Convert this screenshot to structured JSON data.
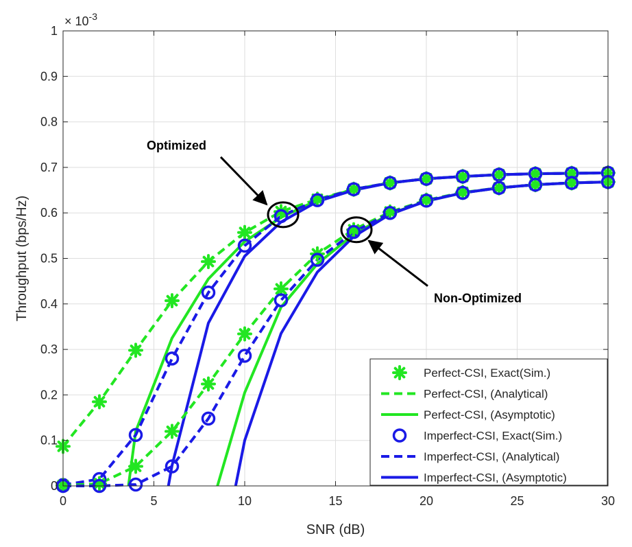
{
  "chart_data": {
    "type": "line",
    "xlabel": "SNR (dB)",
    "ylabel": "Throughput (bps/Hz)",
    "y_scale_label": "× 10",
    "y_scale_exp": "-3",
    "xlim": [
      0,
      30
    ],
    "ylim": [
      0,
      1
    ],
    "xticks": [
      0,
      5,
      10,
      15,
      20,
      25,
      30
    ],
    "yticks": [
      0,
      0.1,
      0.2,
      0.3,
      0.4,
      0.5,
      0.6,
      0.7,
      0.8,
      0.9,
      1
    ],
    "grid": true,
    "legend_position": "bottom-right",
    "colors": {
      "perfect": "#22e622",
      "imperfect": "#1a1ae6"
    },
    "annotations": [
      {
        "text": "Optimized",
        "target": [
          12,
          0.593
        ]
      },
      {
        "text": "Non-Optimized",
        "target": [
          16,
          0.56
        ]
      }
    ],
    "legend": [
      "Perfect-CSI, Exact(Sim.)",
      "Perfect-CSI, (Analytical)",
      "Perfect-CSI, (Asymptotic)",
      "Imperfect-CSI, Exact(Sim.)",
      "Imperfect-CSI, (Analytical)",
      "Imperfect-CSI, (Asymptotic)"
    ],
    "series": [
      {
        "name": "Perfect-CSI, Exact(Sim.)",
        "group": "optimized",
        "style": "marker-star",
        "color": "#22e622",
        "x": [
          0,
          2,
          4,
          6,
          8,
          10,
          12,
          14,
          16,
          18,
          20,
          22,
          24,
          26,
          28,
          30
        ],
        "y": [
          0.087,
          0.185,
          0.298,
          0.407,
          0.493,
          0.557,
          0.603,
          0.63,
          0.652,
          0.666,
          0.675,
          0.68,
          0.684,
          0.686,
          0.687,
          0.688
        ]
      },
      {
        "name": "Perfect-CSI, (Analytical)",
        "group": "optimized",
        "style": "dashed",
        "color": "#22e622",
        "x": [
          0,
          2,
          4,
          6,
          8,
          10,
          12,
          14,
          16,
          18,
          20,
          22,
          24,
          26,
          28,
          30
        ],
        "y": [
          0.087,
          0.185,
          0.298,
          0.407,
          0.493,
          0.557,
          0.603,
          0.63,
          0.652,
          0.666,
          0.675,
          0.68,
          0.684,
          0.686,
          0.687,
          0.688
        ]
      },
      {
        "name": "Perfect-CSI, (Asymptotic)",
        "group": "optimized",
        "style": "solid",
        "color": "#22e622",
        "x": [
          3.6,
          4,
          6,
          8,
          10,
          12,
          14,
          16,
          18,
          20,
          22,
          24,
          26,
          28,
          30
        ],
        "y": [
          0,
          0.12,
          0.325,
          0.455,
          0.537,
          0.59,
          0.628,
          0.652,
          0.666,
          0.675,
          0.68,
          0.684,
          0.686,
          0.687,
          0.688
        ]
      },
      {
        "name": "Imperfect-CSI, Exact(Sim.)",
        "group": "optimized",
        "style": "marker-circle",
        "color": "#1a1ae6",
        "x": [
          0,
          2,
          4,
          6,
          8,
          10,
          12,
          14,
          16,
          18,
          20,
          22,
          24,
          26,
          28,
          30
        ],
        "y": [
          0.002,
          0.015,
          0.112,
          0.28,
          0.425,
          0.528,
          0.593,
          0.628,
          0.652,
          0.666,
          0.675,
          0.68,
          0.684,
          0.686,
          0.687,
          0.688
        ]
      },
      {
        "name": "Imperfect-CSI, (Analytical)",
        "group": "optimized",
        "style": "dashed",
        "color": "#1a1ae6",
        "x": [
          0,
          2,
          4,
          6,
          8,
          10,
          12,
          14,
          16,
          18,
          20,
          22,
          24,
          26,
          28,
          30
        ],
        "y": [
          0.002,
          0.015,
          0.112,
          0.28,
          0.425,
          0.528,
          0.593,
          0.628,
          0.652,
          0.666,
          0.675,
          0.68,
          0.684,
          0.686,
          0.687,
          0.688
        ]
      },
      {
        "name": "Imperfect-CSI, (Asymptotic)",
        "group": "optimized",
        "style": "solid",
        "color": "#1a1ae6",
        "x": [
          5.8,
          6,
          8,
          10,
          12,
          14,
          16,
          18,
          20,
          22,
          24,
          26,
          28,
          30
        ],
        "y": [
          0,
          0.045,
          0.358,
          0.505,
          0.58,
          0.625,
          0.65,
          0.666,
          0.675,
          0.68,
          0.684,
          0.686,
          0.687,
          0.688
        ]
      },
      {
        "name": "Perfect-CSI, Exact(Sim.)",
        "group": "non-optimized",
        "style": "marker-star",
        "color": "#22e622",
        "x": [
          0,
          2,
          4,
          6,
          8,
          10,
          12,
          14,
          16,
          18,
          20,
          22,
          24,
          26,
          28,
          30
        ],
        "y": [
          0.001,
          0.005,
          0.043,
          0.12,
          0.224,
          0.334,
          0.433,
          0.51,
          0.563,
          0.602,
          0.628,
          0.645,
          0.655,
          0.662,
          0.666,
          0.668
        ]
      },
      {
        "name": "Perfect-CSI, (Analytical)",
        "group": "non-optimized",
        "style": "dashed",
        "color": "#22e622",
        "x": [
          0,
          2,
          4,
          6,
          8,
          10,
          12,
          14,
          16,
          18,
          20,
          22,
          24,
          26,
          28,
          30
        ],
        "y": [
          0.001,
          0.005,
          0.043,
          0.12,
          0.224,
          0.334,
          0.433,
          0.51,
          0.563,
          0.602,
          0.628,
          0.645,
          0.655,
          0.662,
          0.666,
          0.668
        ]
      },
      {
        "name": "Perfect-CSI, (Asymptotic)",
        "group": "non-optimized",
        "style": "solid",
        "color": "#22e622",
        "x": [
          8.5,
          10,
          12,
          14,
          16,
          18,
          20,
          22,
          24,
          26,
          28,
          30
        ],
        "y": [
          0,
          0.205,
          0.393,
          0.488,
          0.553,
          0.598,
          0.626,
          0.644,
          0.655,
          0.662,
          0.666,
          0.668
        ]
      },
      {
        "name": "Imperfect-CSI, Exact(Sim.)",
        "group": "non-optimized",
        "style": "marker-circle",
        "color": "#1a1ae6",
        "x": [
          0,
          2,
          4,
          6,
          8,
          10,
          12,
          14,
          16,
          18,
          20,
          22,
          24,
          26,
          28,
          30
        ],
        "y": [
          0.0,
          0.0,
          0.003,
          0.043,
          0.148,
          0.286,
          0.408,
          0.497,
          0.558,
          0.6,
          0.627,
          0.644,
          0.655,
          0.662,
          0.666,
          0.668
        ]
      },
      {
        "name": "Imperfect-CSI, (Analytical)",
        "group": "non-optimized",
        "style": "dashed",
        "color": "#1a1ae6",
        "x": [
          0,
          2,
          4,
          6,
          8,
          10,
          12,
          14,
          16,
          18,
          20,
          22,
          24,
          26,
          28,
          30
        ],
        "y": [
          0.0,
          0.0,
          0.003,
          0.043,
          0.148,
          0.286,
          0.408,
          0.497,
          0.558,
          0.6,
          0.627,
          0.644,
          0.655,
          0.662,
          0.666,
          0.668
        ]
      },
      {
        "name": "Imperfect-CSI, (Asymptotic)",
        "group": "non-optimized",
        "style": "solid",
        "color": "#1a1ae6",
        "x": [
          9.5,
          10,
          12,
          14,
          16,
          18,
          20,
          22,
          24,
          26,
          28,
          30
        ],
        "y": [
          0,
          0.1,
          0.335,
          0.47,
          0.548,
          0.597,
          0.626,
          0.644,
          0.655,
          0.662,
          0.666,
          0.668
        ]
      }
    ]
  }
}
